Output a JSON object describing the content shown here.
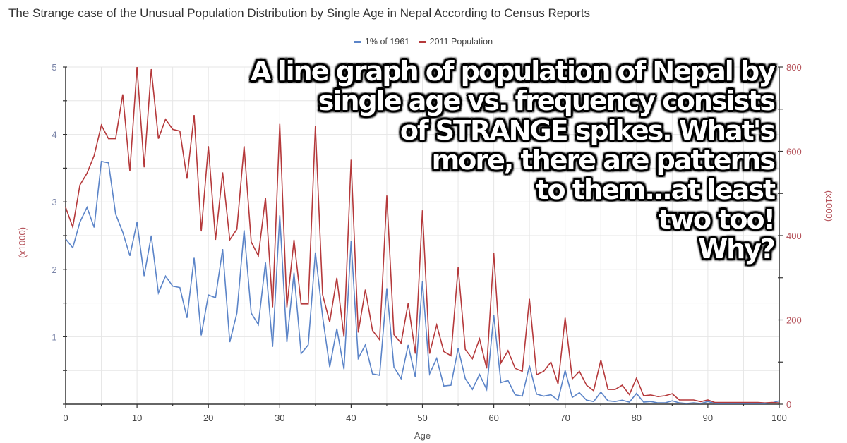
{
  "title": "The Strange case of the Unusual Population Distribution by Single Age in Nepal According to Census Reports",
  "legend": [
    {
      "label": "1% of 1961",
      "color": "#5b84c8"
    },
    {
      "label": "2011 Population",
      "color": "#b5393b"
    }
  ],
  "overlay_text": [
    "A line graph of population of Nepal by",
    "single age vs. frequency consists",
    "of STRANGE spikes. What's",
    "more, there are patterns",
    "to them...at least",
    "two too!",
    "Why?"
  ],
  "chart_data": {
    "type": "line",
    "title": "The Strange case of the Unusual Population Distribution by Single Age in Nepal According to Census Reports",
    "xlabel": "Age",
    "ylabel_left": "(x1000)",
    "ylabel_right": "(x1000)",
    "xlim": [
      0,
      100
    ],
    "ylim_left": [
      0,
      5
    ],
    "ylim_right": [
      0,
      800
    ],
    "x_ticks": [
      0,
      10,
      20,
      30,
      40,
      50,
      60,
      70,
      80,
      90,
      100
    ],
    "y_ticks_left": [
      1,
      2,
      3,
      4,
      5
    ],
    "y_ticks_right": [
      0,
      200,
      400,
      600,
      800
    ],
    "grid": true,
    "legend_position": "top",
    "x": [
      0,
      1,
      2,
      3,
      4,
      5,
      6,
      7,
      8,
      9,
      10,
      11,
      12,
      13,
      14,
      15,
      16,
      17,
      18,
      19,
      20,
      21,
      22,
      23,
      24,
      25,
      26,
      27,
      28,
      29,
      30,
      31,
      32,
      33,
      34,
      35,
      36,
      37,
      38,
      39,
      40,
      41,
      42,
      43,
      44,
      45,
      46,
      47,
      48,
      49,
      50,
      51,
      52,
      53,
      54,
      55,
      56,
      57,
      58,
      59,
      60,
      61,
      62,
      63,
      64,
      65,
      66,
      67,
      68,
      69,
      70,
      71,
      72,
      73,
      74,
      75,
      76,
      77,
      78,
      79,
      80,
      81,
      82,
      83,
      84,
      85,
      86,
      87,
      88,
      89,
      90,
      91,
      92,
      93,
      94,
      95,
      96,
      97,
      98,
      99,
      100
    ],
    "series": [
      {
        "name": "1% of 1961",
        "axis": "left",
        "color": "#5b84c8",
        "values": [
          2.45,
          2.32,
          2.7,
          2.92,
          2.62,
          3.6,
          3.58,
          2.82,
          2.55,
          2.2,
          2.7,
          1.9,
          2.5,
          1.65,
          1.9,
          1.75,
          1.73,
          1.28,
          2.17,
          1.02,
          1.62,
          1.58,
          2.3,
          0.92,
          1.35,
          2.58,
          1.35,
          1.18,
          2.1,
          0.85,
          2.8,
          0.92,
          1.95,
          0.75,
          0.88,
          2.25,
          1.3,
          0.55,
          1.12,
          0.52,
          2.42,
          0.68,
          0.88,
          0.45,
          0.43,
          1.72,
          0.55,
          0.38,
          0.88,
          0.4,
          1.82,
          0.45,
          0.68,
          0.27,
          0.28,
          0.83,
          0.38,
          0.22,
          0.44,
          0.22,
          1.32,
          0.32,
          0.35,
          0.14,
          0.12,
          0.57,
          0.15,
          0.12,
          0.14,
          0.06,
          0.5,
          0.1,
          0.17,
          0.06,
          0.04,
          0.18,
          0.05,
          0.04,
          0.06,
          0.03,
          0.16,
          0.03,
          0.04,
          0.02,
          0.02,
          0.05,
          0.02,
          0.01,
          0.02,
          0.01,
          0.04,
          0.01,
          0.01,
          0.01,
          0.01,
          0.01,
          0.01,
          0.01,
          0.01,
          0.02,
          0.05
        ]
      },
      {
        "name": "2011 Population",
        "axis": "right",
        "color": "#b5393b",
        "values": [
          467,
          420,
          520,
          548,
          590,
          662,
          630,
          630,
          735,
          553,
          800,
          562,
          795,
          630,
          676,
          652,
          648,
          535,
          686,
          410,
          612,
          390,
          550,
          390,
          415,
          612,
          385,
          352,
          490,
          230,
          665,
          230,
          390,
          238,
          238,
          660,
          260,
          195,
          300,
          160,
          580,
          170,
          272,
          175,
          153,
          495,
          165,
          145,
          240,
          120,
          460,
          120,
          188,
          125,
          115,
          325,
          130,
          108,
          155,
          85,
          358,
          98,
          127,
          85,
          78,
          250,
          70,
          78,
          100,
          48,
          205,
          60,
          78,
          45,
          32,
          105,
          35,
          35,
          45,
          23,
          62,
          20,
          22,
          18,
          20,
          25,
          10,
          10,
          10,
          6,
          10,
          4,
          4,
          4,
          4,
          4,
          4,
          4,
          3,
          4,
          3
        ]
      }
    ]
  }
}
